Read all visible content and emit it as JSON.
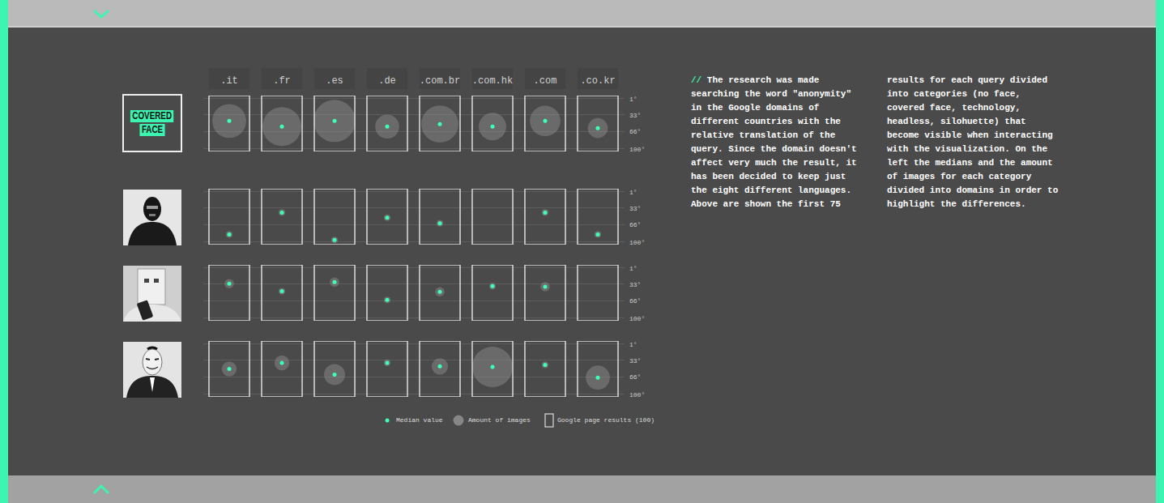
{
  "chart_data": {
    "type": "bubble_grid",
    "categories": [
      ".it",
      ".fr",
      ".es",
      ".de",
      ".com.br",
      ".com.hk",
      ".com",
      ".co.kr"
    ],
    "ylim": [
      105,
      -5
    ],
    "yticks": [
      {
        "value": 1,
        "label": "1°"
      },
      {
        "value": 33,
        "label": "33°"
      },
      {
        "value": 66,
        "label": "66°"
      },
      {
        "value": 100,
        "label": "100°"
      }
    ],
    "grid": true,
    "color": "#3dffb5",
    "series": [
      {
        "name": "COVERED FACE",
        "median": [
          45,
          56,
          45,
          56,
          51,
          56,
          45,
          59
        ],
        "amount": [
          26,
          34,
          40,
          13,
          31,
          17,
          21,
          9
        ]
      },
      {
        "median": [
          85,
          42,
          96,
          52,
          63,
          null,
          42,
          85
        ],
        "amount": [
          1,
          1,
          1,
          1,
          1,
          0,
          1,
          1
        ]
      },
      {
        "median": [
          32,
          47,
          29,
          64,
          48,
          37,
          38,
          null
        ],
        "amount": [
          2,
          1,
          2,
          1,
          2,
          1,
          2,
          0
        ]
      },
      {
        "median": [
          50,
          38,
          61,
          38,
          45,
          46,
          42,
          67
        ],
        "amount": [
          5,
          5,
          10,
          1,
          6,
          37,
          1,
          13
        ]
      }
    ],
    "legend_labels": [
      "Median value",
      "Amount of images",
      "Google page results (100)"
    ]
  },
  "description": {
    "prefix": "//",
    "columns": [
      [
        "The research was made",
        "searching the word \"anonymity\"",
        "in the Google domains of",
        "different countries with the",
        "relative translation of the",
        "query. Since the domain doesn't",
        "affect very much the result, it",
        "has been decided to keep just",
        "the eight different languages.",
        "Above are shown the first 75"
      ],
      [
        "results for each query divided",
        "into categories (no face,",
        "covered face, technology,",
        "headless, silohuette) that",
        "become visible when interacting",
        "with the visualization. On the",
        "left the medians and the amount",
        "of images for each category",
        "divided into domains in order to",
        "highlight the differences."
      ]
    ]
  }
}
